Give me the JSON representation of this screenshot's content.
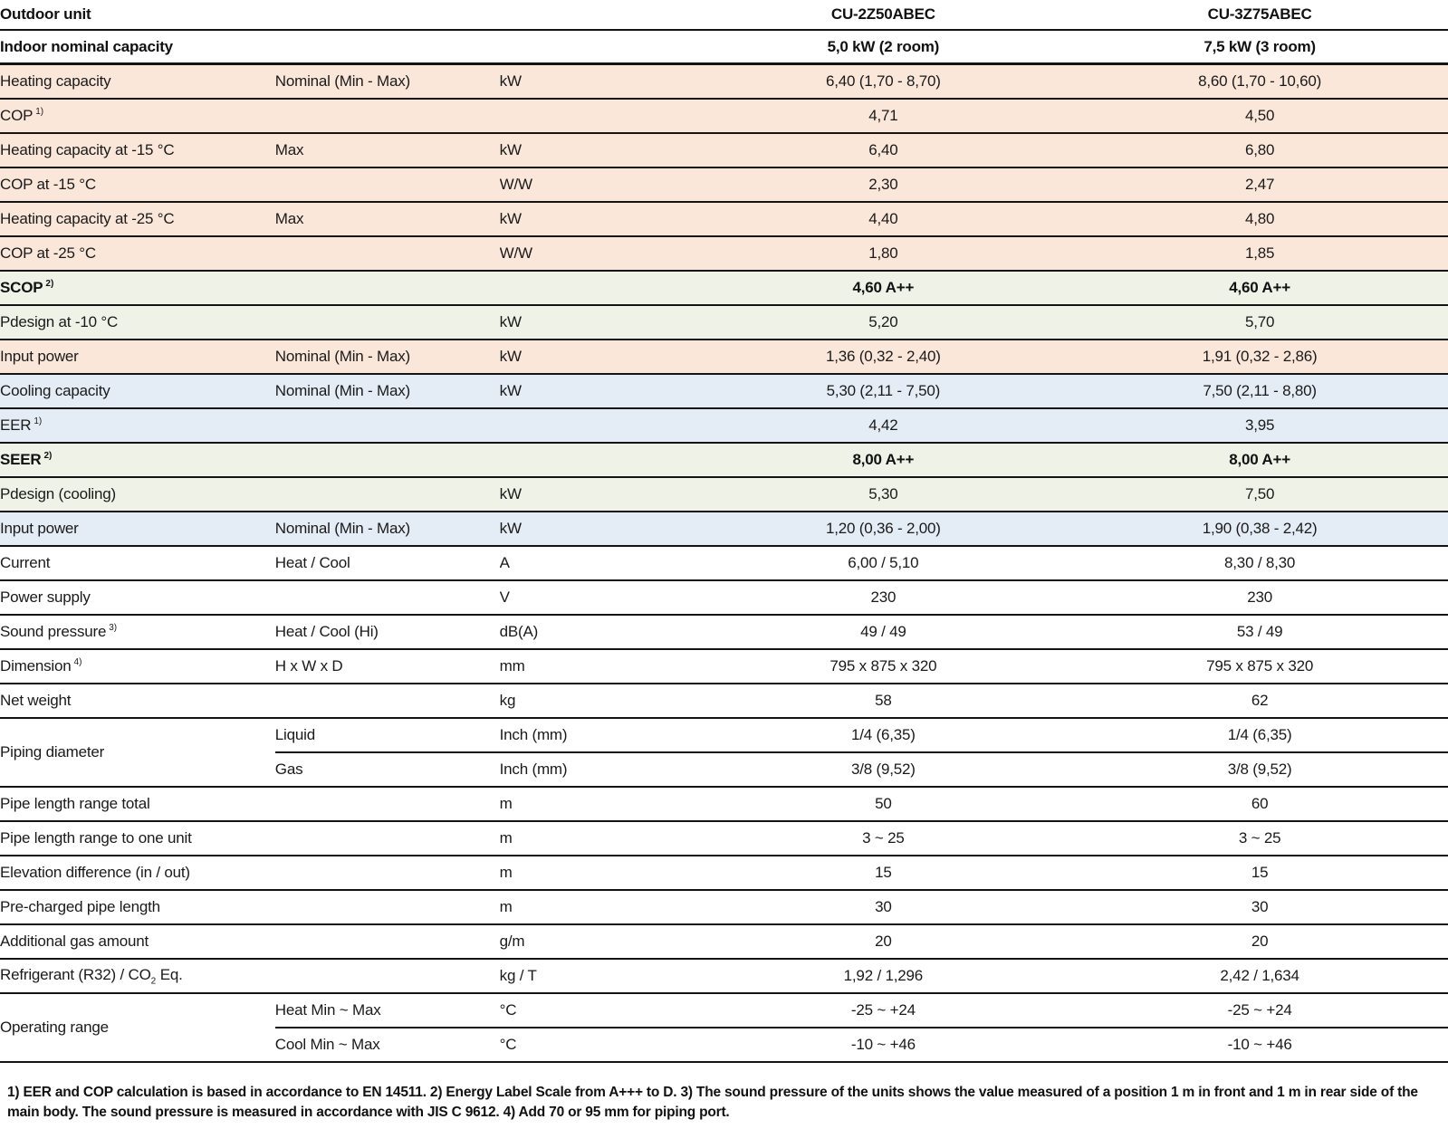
{
  "header": {
    "outdoor_unit_label": "Outdoor unit",
    "models": [
      "CU-2Z50ABEC",
      "CU-3Z75ABEC"
    ],
    "indoor_capacity_label": "Indoor nominal capacity",
    "indoor_capacities": [
      "5,0 kW (2 room)",
      "7,5 kW (3 room)"
    ]
  },
  "colors": {
    "heating": "#fbe7da",
    "seasonal": "#eef2e7",
    "cooling": "#e4edf6",
    "plain": "#ffffff",
    "border": "#141414"
  },
  "rows": [
    {
      "bg": "heating",
      "label": "Heating capacity",
      "attr": "Nominal (Min - Max)",
      "unit": "kW",
      "values": [
        "6,40 (1,70 - 8,70)",
        "8,60 (1,70 - 10,60)"
      ]
    },
    {
      "bg": "heating",
      "label": "COP",
      "sup": "1)",
      "attr": "",
      "unit": "",
      "values": [
        "4,71",
        "4,50"
      ]
    },
    {
      "bg": "heating",
      "label": "Heating capacity at -15 °C",
      "attr": "Max",
      "unit": "kW",
      "values": [
        "6,40",
        "6,80"
      ]
    },
    {
      "bg": "heating",
      "label": "COP at -15 °C",
      "attr": "",
      "unit": "W/W",
      "values": [
        "2,30",
        "2,47"
      ]
    },
    {
      "bg": "heating",
      "label": "Heating capacity at -25 °C",
      "attr": "Max",
      "unit": "kW",
      "values": [
        "4,40",
        "4,80"
      ]
    },
    {
      "bg": "heating",
      "label": "COP at -25 °C",
      "attr": "",
      "unit": "W/W",
      "values": [
        "1,80",
        "1,85"
      ]
    },
    {
      "bg": "seasonal",
      "bold": true,
      "label": "SCOP",
      "sup": "2)",
      "attr": "",
      "unit": "",
      "values": [
        "4,60 A++",
        "4,60 A++"
      ]
    },
    {
      "bg": "seasonal",
      "label": "Pdesign at -10 °C",
      "attr": "",
      "unit": "kW",
      "values": [
        "5,20",
        "5,70"
      ]
    },
    {
      "bg": "heating",
      "label": "Input power",
      "attr": "Nominal (Min - Max)",
      "unit": "kW",
      "values": [
        "1,36 (0,32 - 2,40)",
        "1,91 (0,32 - 2,86)"
      ]
    },
    {
      "bg": "cooling",
      "label": "Cooling capacity",
      "attr": "Nominal (Min - Max)",
      "unit": "kW",
      "values": [
        "5,30 (2,11 - 7,50)",
        "7,50 (2,11 - 8,80)"
      ]
    },
    {
      "bg": "cooling",
      "label": "EER",
      "sup": "1)",
      "attr": "",
      "unit": "",
      "values": [
        "4,42",
        "3,95"
      ]
    },
    {
      "bg": "seasonal",
      "bold": true,
      "label": "SEER",
      "sup": "2)",
      "attr": "",
      "unit": "",
      "values": [
        "8,00 A++",
        "8,00 A++"
      ]
    },
    {
      "bg": "seasonal",
      "label": "Pdesign (cooling)",
      "attr": "",
      "unit": "kW",
      "values": [
        "5,30",
        "7,50"
      ]
    },
    {
      "bg": "cooling",
      "label": "Input power",
      "attr": "Nominal (Min - Max)",
      "unit": "kW",
      "values": [
        "1,20 (0,36 - 2,00)",
        "1,90 (0,38 - 2,42)"
      ]
    },
    {
      "bg": "plain",
      "label": "Current",
      "attr": "Heat / Cool",
      "unit": "A",
      "values": [
        "6,00 / 5,10",
        "8,30 / 8,30"
      ]
    },
    {
      "bg": "plain",
      "label": "Power supply",
      "attr": "",
      "unit": "V",
      "values": [
        "230",
        "230"
      ]
    },
    {
      "bg": "plain",
      "label": "Sound pressure",
      "sup": "3)",
      "attr": "Heat / Cool (Hi)",
      "unit": "dB(A)",
      "values": [
        "49 / 49",
        "53 / 49"
      ]
    },
    {
      "bg": "plain",
      "label": "Dimension",
      "sup": "4)",
      "attr": "H x W x D",
      "unit": "mm",
      "values": [
        "795 x 875 x 320",
        "795 x 875 x 320"
      ]
    },
    {
      "bg": "plain",
      "label": "Net weight",
      "attr": "",
      "unit": "kg",
      "values": [
        "58",
        "62"
      ]
    },
    {
      "bg": "plain",
      "label": "Piping diameter",
      "rowspan": 2,
      "attr": "Liquid",
      "unit": "Inch (mm)",
      "values": [
        "1/4 (6,35)",
        "1/4 (6,35)"
      ]
    },
    {
      "bg": "plain",
      "noLabel": true,
      "attr": "Gas",
      "unit": "Inch (mm)",
      "values": [
        "3/8 (9,52)",
        "3/8 (9,52)"
      ]
    },
    {
      "bg": "plain",
      "label": "Pipe length range total",
      "attr": "",
      "unit": "m",
      "values": [
        "50",
        "60"
      ]
    },
    {
      "bg": "plain",
      "label": "Pipe length range to one unit",
      "attr": "",
      "unit": "m",
      "values": [
        "3 ~ 25",
        "3 ~ 25"
      ]
    },
    {
      "bg": "plain",
      "label": "Elevation difference (in / out)",
      "attr": "",
      "unit": "m",
      "values": [
        "15",
        "15"
      ]
    },
    {
      "bg": "plain",
      "label": "Pre-charged pipe length",
      "attr": "",
      "unit": "m",
      "values": [
        "30",
        "30"
      ]
    },
    {
      "bg": "plain",
      "label": "Additional gas amount",
      "attr": "",
      "unit": "g/m",
      "values": [
        "20",
        "20"
      ]
    },
    {
      "bg": "plain",
      "label": "Refrigerant (R32) / CO",
      "sub": "2",
      "tail": " Eq.",
      "attr": "",
      "unit": "kg / T",
      "values": [
        "1,92 / 1,296",
        "2,42 / 1,634"
      ]
    },
    {
      "bg": "plain",
      "label": "Operating range",
      "rowspan": 2,
      "attr": "Heat Min ~ Max",
      "unit": "°C",
      "values": [
        "-25 ~ +24",
        "-25 ~ +24"
      ]
    },
    {
      "bg": "plain",
      "noLabel": true,
      "attr": "Cool Min ~ Max",
      "unit": "°C",
      "values": [
        "-10 ~ +46",
        "-10 ~ +46"
      ]
    }
  ],
  "footnote": "1) EER and COP calculation is based in accordance to EN 14511. 2) Energy Label Scale from A+++ to D. 3) The sound pressure of the units shows the value measured of a position 1 m in front and 1 m in rear side of the main body. The sound pressure is measured in accordance with JIS C 9612. 4) Add 70 or 95 mm for piping port."
}
